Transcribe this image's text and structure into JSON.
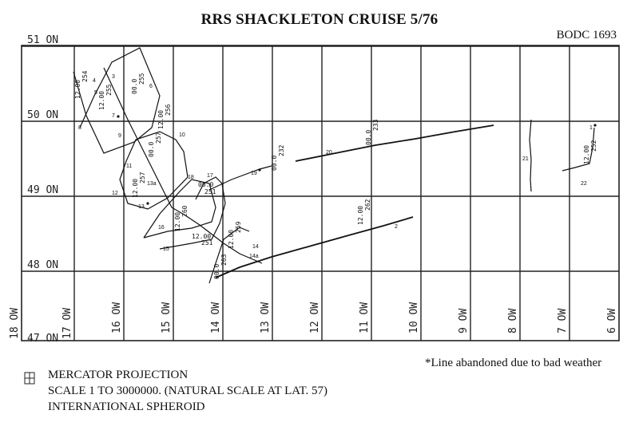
{
  "title": "RRS SHACKLETON CRUISE 5/76",
  "reference": "BODC 1693",
  "latitudes": [
    "51 ON",
    "50 ON",
    "49 ON",
    "48 ON",
    "47 ON"
  ],
  "longitudes": [
    "18 OW",
    "17 OW",
    "16 OW",
    "15 OW",
    "14 OW",
    "13 OW",
    "12 OW",
    "11 OW",
    "10 OW",
    "9 OW",
    "8 OW",
    "7 OW",
    "6 OW"
  ],
  "stations": [
    "1",
    "2",
    "3",
    "4",
    "5",
    "6",
    "7",
    "8",
    "9",
    "10",
    "11",
    "12",
    "13",
    "13a",
    "14",
    "14a",
    "15",
    "16",
    "17",
    "18",
    "19",
    "20",
    "21",
    "22"
  ],
  "track_times": [
    "12.00",
    "254",
    "00.0",
    "255",
    "12.00",
    "255",
    "12.00",
    "256",
    "00.0",
    "257",
    "12.00",
    "257",
    "00.0",
    "251",
    "12.00",
    "259",
    "12.00",
    "262",
    "00.0",
    "263",
    "00.0",
    "232",
    "00.0",
    "233",
    "12.00",
    "251",
    "12.00",
    "260",
    "12.00",
    "252"
  ],
  "footnote": "*Line abandoned due to bad weather",
  "projection": {
    "line1": "MERCATOR PROJECTION",
    "line2": "SCALE 1 TO 3000000. (NATURAL SCALE AT LAT. 57)",
    "line3": "INTERNATIONAL SPHEROID"
  },
  "colors": {
    "ink": "#111111",
    "paper": "#ffffff"
  }
}
